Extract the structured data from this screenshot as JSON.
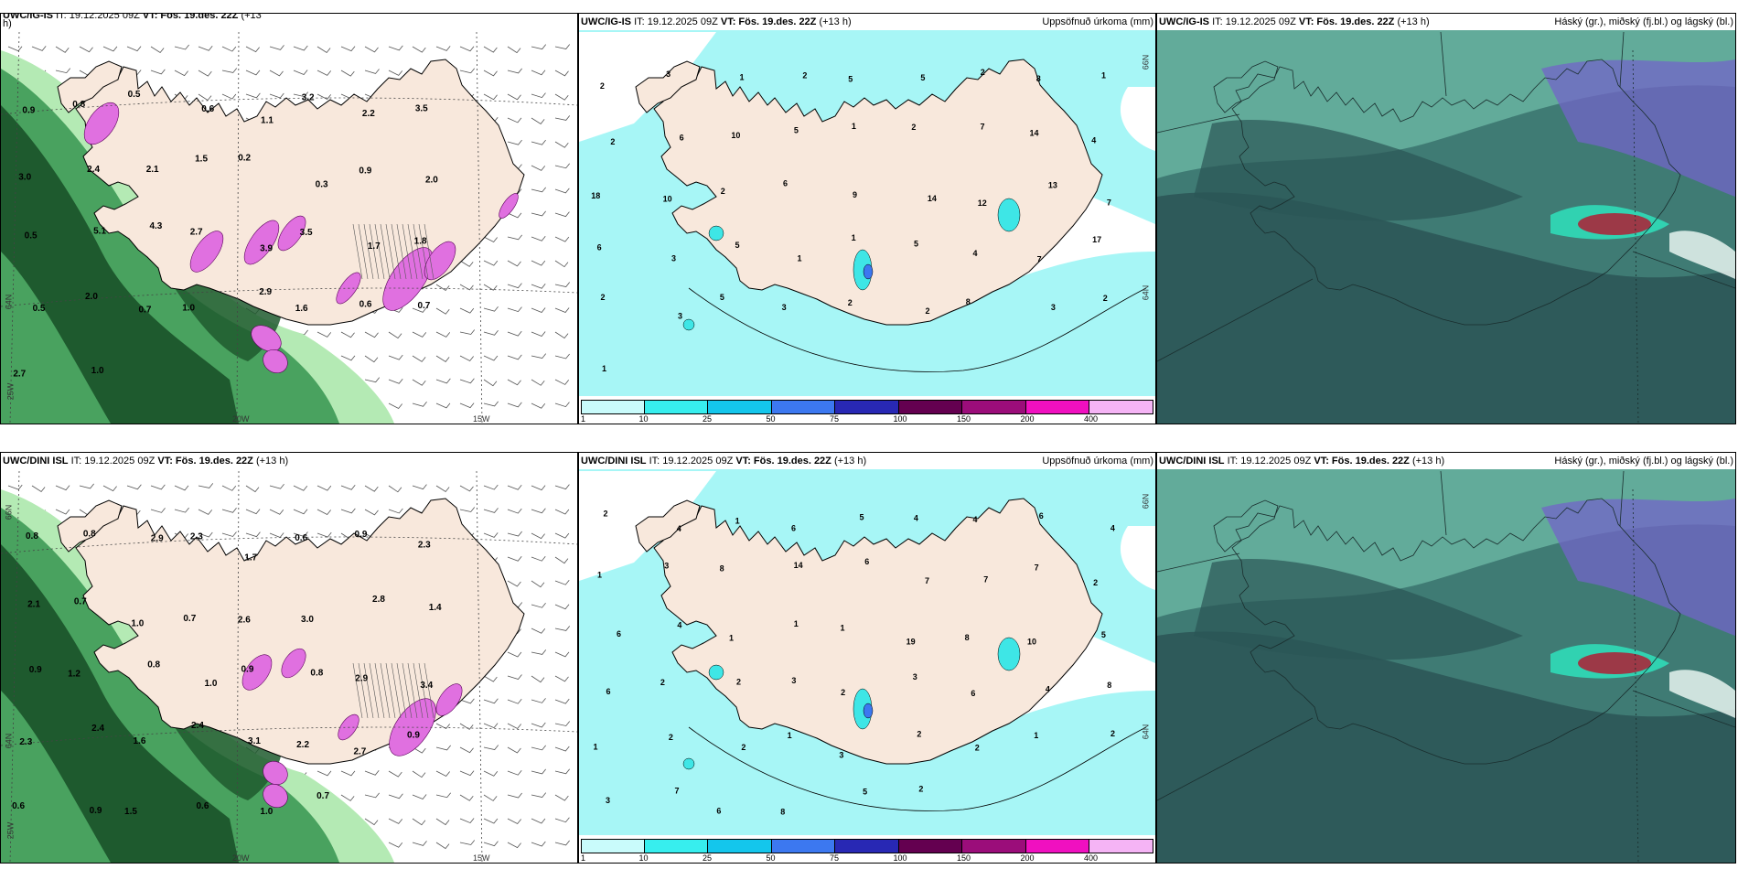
{
  "panels": [
    {
      "id": "top-left",
      "title_html_pre": "UWC/IG-IS",
      "it_label": "IT: 19.12.2025 09Z",
      "vt_label": "VT: Fös. 19.des. 22Z",
      "lead": "(+13",
      "lead2": "h)",
      "right_label": "",
      "lon_labels": [
        "20W",
        "15W",
        "25W"
      ],
      "lat_labels": [
        "64N"
      ],
      "values": [
        "0.9",
        "0.8",
        "0.5",
        "0.6",
        "1.1",
        "3.2",
        "2.2",
        "3.5",
        "3.0",
        "2.4",
        "2.1",
        "1.5",
        "0.2",
        "0.3",
        "0.9",
        "2.0",
        "0.5",
        "5.1",
        "4.3",
        "2.7",
        "3.9",
        "3.5",
        "1.7",
        "1.8",
        "0.5",
        "2.0",
        "0.7",
        "1.0",
        "2.9",
        "1.6",
        "0.6",
        "0.7",
        "2.7",
        "1.0"
      ]
    },
    {
      "id": "top-middle",
      "title_html_pre": "UWC/IG-IS",
      "it_label": "IT: 19.12.2025 09Z",
      "vt_label": "VT: Fös. 19.des. 22Z",
      "lead": "(+13 h)",
      "right_label": "Uppsöfnuð úrkoma (mm)",
      "lat_labels": [
        "66N",
        "64N"
      ],
      "values": [
        "2",
        "3",
        "1",
        "2",
        "5",
        "5",
        "2",
        "8",
        "1",
        "2",
        "6",
        "10",
        "5",
        "1",
        "2",
        "7",
        "14",
        "4",
        "18",
        "10",
        "2",
        "6",
        "9",
        "14",
        "12",
        "13",
        "7",
        "6",
        "3",
        "5",
        "1",
        "1",
        "5",
        "4",
        "7",
        "17",
        "2",
        "3",
        "5",
        "3",
        "2",
        "2",
        "8",
        "3",
        "2",
        "1"
      ],
      "colorbar_ticks": [
        "1",
        "10",
        "25",
        "50",
        "75",
        "100",
        "150",
        "200",
        "400"
      ]
    },
    {
      "id": "top-right",
      "title_html_pre": "UWC/IG-IS",
      "it_label": "IT: 19.12.2025 09Z",
      "vt_label": "VT: Fös. 19.des. 22Z",
      "lead": "(+13 h)",
      "right_label": "Háský (gr.), miðský (fj.bl.) og lágský (bl.)"
    },
    {
      "id": "bottom-left",
      "title_html_pre": "UWC/DINI ISL",
      "it_label": "IT: 19.12.2025 09Z",
      "vt_label": "VT: Fös. 19.des. 22Z",
      "lead": "(+13 h)",
      "right_label": "",
      "lon_labels": [
        "20W",
        "15W",
        "25W"
      ],
      "lat_labels": [
        "66N",
        "64N"
      ],
      "values": [
        "0.8",
        "0.8",
        "2.9",
        "2.3",
        "1.7",
        "0.6",
        "0.9",
        "2.3",
        "2.1",
        "0.7",
        "1.0",
        "0.7",
        "2.6",
        "3.0",
        "2.8",
        "1.4",
        "0.9",
        "1.2",
        "0.8",
        "1.0",
        "0.9",
        "0.8",
        "2.9",
        "3.4",
        "2.3",
        "2.4",
        "1.6",
        "2.4",
        "3.1",
        "2.2",
        "2.7",
        "0.9",
        "0.6",
        "0.9",
        "1.5",
        "0.6",
        "1.0",
        "0.7"
      ]
    },
    {
      "id": "bottom-middle",
      "title_html_pre": "UWC/DINI ISL",
      "it_label": "IT: 19.12.2025 09Z",
      "vt_label": "VT: Fös. 19.des. 22Z",
      "lead": "(+13 h)",
      "right_label": "Uppsöfnuð úrkoma (mm)",
      "lat_labels": [
        "66N",
        "64N"
      ],
      "values": [
        "2",
        "4",
        "1",
        "6",
        "5",
        "4",
        "4",
        "6",
        "4",
        "1",
        "3",
        "8",
        "14",
        "6",
        "7",
        "7",
        "7",
        "2",
        "6",
        "4",
        "1",
        "1",
        "1",
        "19",
        "8",
        "10",
        "5",
        "6",
        "2",
        "2",
        "3",
        "2",
        "3",
        "6",
        "4",
        "8",
        "1",
        "2",
        "2",
        "1",
        "3",
        "2",
        "2",
        "1",
        "2",
        "3",
        "7",
        "6",
        "8",
        "5",
        "2"
      ],
      "colorbar_ticks": [
        "1",
        "10",
        "25",
        "50",
        "75",
        "100",
        "150",
        "200",
        "400"
      ]
    },
    {
      "id": "bottom-right",
      "title_html_pre": "UWC/DINI ISL",
      "it_label": "IT: 19.12.2025 09Z",
      "vt_label": "VT: Fös. 19.des. 22Z",
      "lead": "(+13 h)",
      "right_label": "Háský (gr.), miðský (fj.bl.) og lágský (bl.)"
    }
  ],
  "colors": {
    "land": "#f8e8dc",
    "precip_light": "#a7f6f6",
    "precip_mid": "#3ee6e6",
    "snow_green_dark": "#1e5a2e",
    "snow_green_mid": "#3d9a55",
    "snow_green_light": "#b4eab4",
    "snow_pink": "#e070e0",
    "cloud_dark": "#2b5556",
    "cloud_mid": "#3f7b74",
    "cloud_light": "#6cb8a4",
    "cloud_violet": "#7364c8",
    "cloud_red": "#a8283c"
  },
  "colorbar_colors": [
    "#c9fbfb",
    "#37eeee",
    "#14c6ec",
    "#3c78f0",
    "#2828b4",
    "#640050",
    "#9b0d7a",
    "#f010c0",
    "#f5b4f5"
  ]
}
